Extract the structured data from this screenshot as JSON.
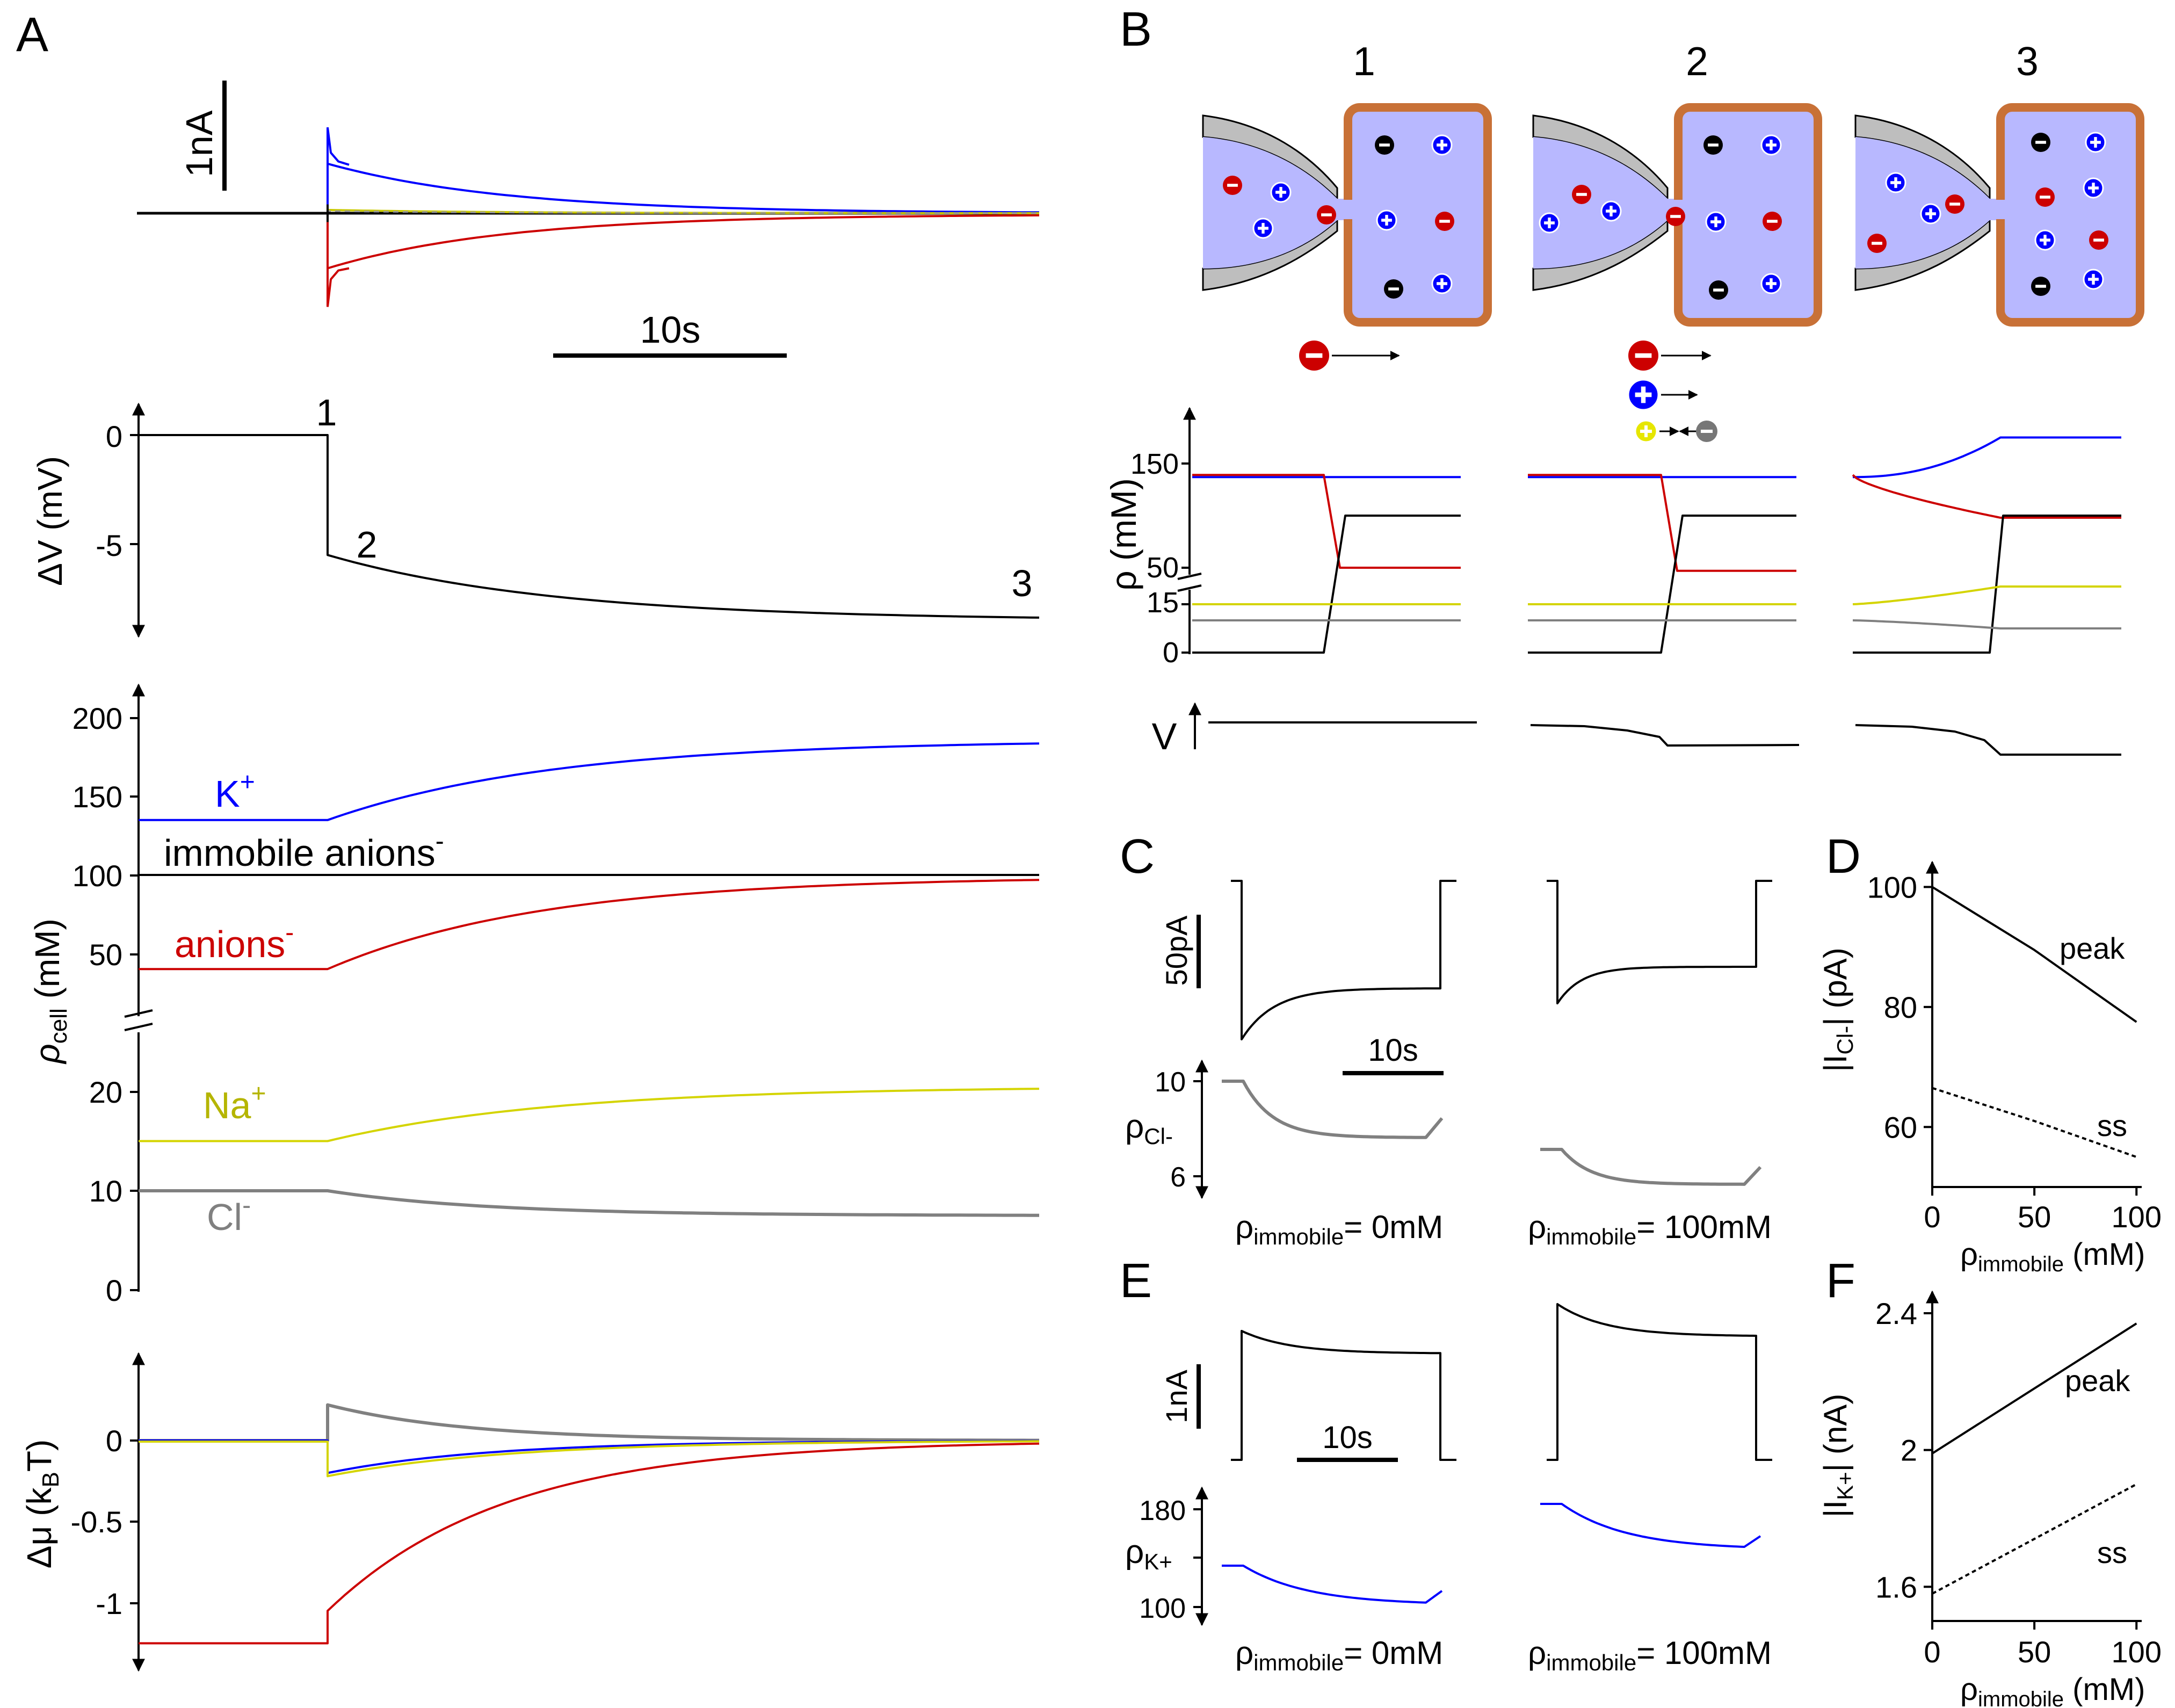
{
  "panel_letters": {
    "A": "A",
    "B": "B",
    "C": "C",
    "D": "D",
    "E": "E",
    "F": "F"
  },
  "colors": {
    "K": "#0000ff",
    "anion": "#cc0000",
    "Na": "#c8c800",
    "Cl": "#808080",
    "immobile": "#000000",
    "cell_fill": "#b8b8ff",
    "membrane": "#c87137",
    "pipette_glass": "#bebebe"
  },
  "panelA": {
    "scalebars": {
      "current": "1nA",
      "time": "10s"
    },
    "markers": {
      "m1": "1",
      "m2": "2",
      "m3": "3"
    },
    "dv": {
      "ylabel": "ΔV (mV)",
      "ticks": [
        "0",
        "-5"
      ]
    },
    "rho": {
      "ylabel_main": "ρ",
      "ylabel_sub": "cell",
      "ylabel_unit": " (mM)",
      "upper_ticks": [
        "200",
        "150",
        "100",
        "50"
      ],
      "lower_ticks": [
        "20",
        "10",
        "0"
      ],
      "labels": {
        "K": "K",
        "K_sup": "+",
        "immobile": "immobile anions",
        "immobile_sup": "-",
        "anions": "anions",
        "anions_sup": "-",
        "Na": "Na",
        "Na_sup": "+",
        "Cl": "Cl",
        "Cl_sup": "-"
      }
    },
    "dmu": {
      "ylabel_main": "Δμ (k",
      "ylabel_sub": "B",
      "ylabel_end": "T)",
      "ticks": [
        "0",
        "-0.5",
        "-1"
      ]
    }
  },
  "panelB": {
    "stages": [
      "1",
      "2",
      "3"
    ],
    "rho_ylabel": "ρ (mM)",
    "rho_ticks": [
      "150",
      "50",
      "15",
      "0"
    ],
    "v_label": "V"
  },
  "panelC": {
    "scalebars": {
      "current": "50pA",
      "time": "10s"
    },
    "rho_label": "ρ",
    "rho_sub": "Cl-",
    "rho_ticks": [
      "10",
      "6"
    ],
    "conditions": [
      {
        "main": "ρ",
        "sub": "immobile",
        "value": "= 0mM"
      },
      {
        "main": "ρ",
        "sub": "immobile",
        "value": "= 100mM"
      }
    ]
  },
  "panelD": {
    "ylabel_main": "|I",
    "ylabel_sub": "Cl-",
    "ylabel_end": "| (pA)",
    "xlabel_main": "ρ",
    "xlabel_sub": "immobile",
    "xlabel_end": " (mM)",
    "yticks": [
      "100",
      "80",
      "60"
    ],
    "xticks": [
      "0",
      "50",
      "100"
    ],
    "label_peak": "peak",
    "label_ss": "ss"
  },
  "panelE": {
    "scalebars": {
      "current": "1nA",
      "time": "10s"
    },
    "rho_label": "ρ",
    "rho_sub": "K+",
    "rho_ticks": [
      "180",
      "100"
    ],
    "conditions": [
      {
        "main": "ρ",
        "sub": "immobile",
        "value": "= 0mM"
      },
      {
        "main": "ρ",
        "sub": "immobile",
        "value": "= 100mM"
      }
    ]
  },
  "panelF": {
    "ylabel_main": "|I",
    "ylabel_sub": "K+",
    "ylabel_end": "| (nA)",
    "xlabel_main": "ρ",
    "xlabel_sub": "immobile",
    "xlabel_end": " (mM)",
    "yticks": [
      "2.4",
      "2",
      "1.6"
    ],
    "xticks": [
      "0",
      "50",
      "100"
    ],
    "label_peak": "peak",
    "label_ss": "ss"
  },
  "chart_data": [
    {
      "type": "line",
      "title": "",
      "xlabel": "",
      "ylabel": "",
      "time_s": [
        0,
        50
      ],
      "series": [
        {
          "name": "K+",
          "values": [
            0,
            0.78,
            0.45,
            0.15,
            0.02
          ]
        },
        {
          "name": "anions-",
          "values": [
            0,
            -0.85,
            -0.5,
            -0.2,
            -0.02
          ]
        }
      ]
    },
    {
      "type": "line",
      "ylabel": "ΔV (mV)",
      "ylim": [
        -9,
        1
      ],
      "series": [
        {
          "name": "ΔV",
          "step_time_s": 17,
          "before": 0,
          "after_jump": -5.5,
          "final": -8.5
        }
      ]
    },
    {
      "type": "line",
      "ylabel": "ρcell (mM)",
      "upper_ylim": [
        35,
        215
      ],
      "lower_ylim": [
        0,
        27
      ],
      "series": [
        {
          "name": "K+",
          "before": 135,
          "final": 186
        },
        {
          "name": "immobile anions-",
          "before": 100,
          "final": 100
        },
        {
          "name": "anions-",
          "before": 40,
          "final": 99
        },
        {
          "name": "Na+",
          "before": 15,
          "final": 20.5
        },
        {
          "name": "Cl-",
          "before": 10,
          "final": 7.5
        }
      ]
    },
    {
      "type": "line",
      "ylabel": "Δμ (kBT)",
      "ylim": [
        -1.35,
        0.5
      ],
      "series": [
        {
          "name": "Cl-",
          "before": 0,
          "jump": 0.22,
          "final": 0
        },
        {
          "name": "K+",
          "before": 0,
          "jump": -0.2,
          "final": 0
        },
        {
          "name": "Na+",
          "before": 0,
          "jump": -0.2,
          "final": 0
        },
        {
          "name": "anions-",
          "before": -1.25,
          "jump": -1.05,
          "final": 0
        }
      ]
    },
    {
      "type": "line",
      "title": "",
      "xlabel": "ρimmobile (mM)",
      "ylabel": "|ICl-| (pA)",
      "xlim": [
        0,
        100
      ],
      "ylim": [
        50,
        100
      ],
      "x": [
        0,
        50,
        100
      ],
      "series": [
        {
          "name": "peak",
          "values": [
            100,
            89.5,
            77.5
          ]
        },
        {
          "name": "ss",
          "values": [
            66.5,
            61,
            55
          ]
        }
      ]
    },
    {
      "type": "line",
      "title": "",
      "xlabel": "ρimmobile (mM)",
      "ylabel": "|IK+| (nA)",
      "xlim": [
        0,
        100
      ],
      "ylim": [
        1.5,
        2.4
      ],
      "x": [
        0,
        50,
        100
      ],
      "series": [
        {
          "name": "peak",
          "values": [
            1.99,
            2.18,
            2.37
          ]
        },
        {
          "name": "ss",
          "values": [
            1.58,
            1.74,
            1.9
          ]
        }
      ]
    }
  ]
}
